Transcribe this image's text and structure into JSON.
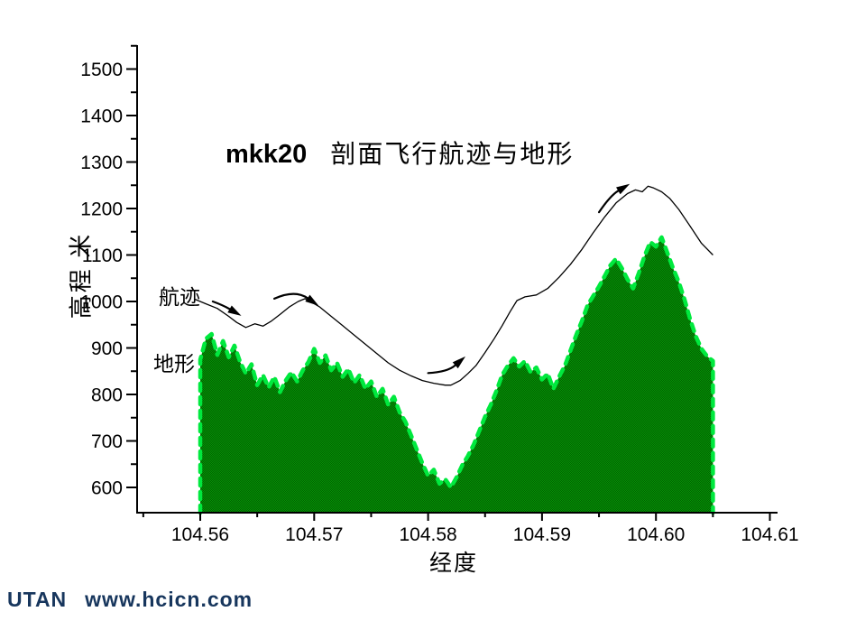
{
  "watermark": {
    "brand": "UTAN",
    "url": "www.hcicn.com",
    "color": "#17365D"
  },
  "chart_data": {
    "type": "area",
    "title": {
      "prefix": "mkk20",
      "text": "剖面飞行航迹与地形"
    },
    "xlabel": "经度",
    "ylabel": "高程 米",
    "xlim": [
      104.5545,
      104.6107
    ],
    "ylim": [
      545,
      1550
    ],
    "x_major_ticks": [
      104.56,
      104.57,
      104.58,
      104.59,
      104.6,
      104.61
    ],
    "x_major_labels": [
      "104.56",
      "104.57",
      "104.58",
      "104.59",
      "104.60",
      "104.61"
    ],
    "x_minor_ticks": [
      104.555,
      104.565,
      104.575,
      104.585,
      104.595,
      104.605
    ],
    "y_major_ticks": [
      600,
      700,
      800,
      900,
      1000,
      1100,
      1200,
      1300,
      1400,
      1500
    ],
    "y_major_labels": [
      "600",
      "700",
      "800",
      "900",
      "1000",
      "1100",
      "1200",
      "1300",
      "1400",
      "1500"
    ],
    "y_minor_ticks": [
      650,
      750,
      850,
      950,
      1050,
      1150,
      1250,
      1350,
      1450,
      1550
    ],
    "grid": false,
    "legend_position": "inline-labels",
    "colors": {
      "axis": "#000000",
      "flight_line": "#000000",
      "terrain_fill": "#059405",
      "terrain_fill_dark": "#026002",
      "terrain_edge": "#00E93E"
    },
    "series": [
      {
        "name": "航迹",
        "type": "line",
        "label_pos": [
          104.5564,
          1023
        ],
        "points": [
          [
            104.5595,
            1005
          ],
          [
            104.5605,
            995
          ],
          [
            104.5615,
            985
          ],
          [
            104.5625,
            968
          ],
          [
            104.5632,
            955
          ],
          [
            104.564,
            944
          ],
          [
            104.5648,
            952
          ],
          [
            104.5655,
            947
          ],
          [
            104.5662,
            957
          ],
          [
            104.567,
            972
          ],
          [
            104.5678,
            988
          ],
          [
            104.5686,
            1000
          ],
          [
            104.5692,
            1006
          ],
          [
            104.5698,
            998
          ],
          [
            104.5705,
            988
          ],
          [
            104.5715,
            968
          ],
          [
            104.5725,
            948
          ],
          [
            104.5735,
            928
          ],
          [
            104.5745,
            908
          ],
          [
            104.5755,
            888
          ],
          [
            104.5765,
            868
          ],
          [
            104.5775,
            852
          ],
          [
            104.5785,
            840
          ],
          [
            104.5795,
            830
          ],
          [
            104.5805,
            824
          ],
          [
            104.5815,
            820
          ],
          [
            104.582,
            820
          ],
          [
            104.5828,
            830
          ],
          [
            104.5835,
            845
          ],
          [
            104.5842,
            862
          ],
          [
            104.585,
            890
          ],
          [
            104.5858,
            920
          ],
          [
            104.5865,
            948
          ],
          [
            104.5872,
            978
          ],
          [
            104.5878,
            1002
          ],
          [
            104.5885,
            1010
          ],
          [
            104.5895,
            1014
          ],
          [
            104.5905,
            1028
          ],
          [
            104.5915,
            1052
          ],
          [
            104.5925,
            1080
          ],
          [
            104.5935,
            1112
          ],
          [
            104.5945,
            1148
          ],
          [
            104.5955,
            1182
          ],
          [
            104.5965,
            1212
          ],
          [
            104.5975,
            1232
          ],
          [
            104.5982,
            1240
          ],
          [
            104.5988,
            1236
          ],
          [
            104.5993,
            1248
          ],
          [
            104.5998,
            1244
          ],
          [
            104.6005,
            1236
          ],
          [
            104.6012,
            1222
          ],
          [
            104.602,
            1198
          ],
          [
            104.603,
            1162
          ],
          [
            104.604,
            1125
          ],
          [
            104.605,
            1100
          ]
        ]
      },
      {
        "name": "地形",
        "type": "area",
        "label_pos": [
          104.556,
          880
        ],
        "baseline": 545,
        "points": [
          [
            104.56,
            875
          ],
          [
            104.5605,
            920
          ],
          [
            104.561,
            930
          ],
          [
            104.5615,
            885
          ],
          [
            104.562,
            915
          ],
          [
            104.5625,
            880
          ],
          [
            104.563,
            905
          ],
          [
            104.5635,
            870
          ],
          [
            104.564,
            845
          ],
          [
            104.5645,
            865
          ],
          [
            104.565,
            820
          ],
          [
            104.5655,
            842
          ],
          [
            104.566,
            815
          ],
          [
            104.5665,
            838
          ],
          [
            104.567,
            805
          ],
          [
            104.5675,
            830
          ],
          [
            104.568,
            848
          ],
          [
            104.5685,
            828
          ],
          [
            104.569,
            852
          ],
          [
            104.5695,
            870
          ],
          [
            104.57,
            898
          ],
          [
            104.5705,
            868
          ],
          [
            104.571,
            884
          ],
          [
            104.5715,
            852
          ],
          [
            104.572,
            868
          ],
          [
            104.5725,
            838
          ],
          [
            104.573,
            855
          ],
          [
            104.5735,
            825
          ],
          [
            104.574,
            842
          ],
          [
            104.5745,
            812
          ],
          [
            104.575,
            828
          ],
          [
            104.5755,
            795
          ],
          [
            104.576,
            812
          ],
          [
            104.5765,
            778
          ],
          [
            104.577,
            795
          ],
          [
            104.5775,
            762
          ],
          [
            104.578,
            742
          ],
          [
            104.5785,
            712
          ],
          [
            104.579,
            682
          ],
          [
            104.5795,
            652
          ],
          [
            104.58,
            625
          ],
          [
            104.5805,
            638
          ],
          [
            104.581,
            608
          ],
          [
            104.5815,
            618
          ],
          [
            104.582,
            600
          ],
          [
            104.5825,
            622
          ],
          [
            104.583,
            648
          ],
          [
            104.5835,
            668
          ],
          [
            104.584,
            692
          ],
          [
            104.5845,
            722
          ],
          [
            104.585,
            752
          ],
          [
            104.5855,
            778
          ],
          [
            104.586,
            808
          ],
          [
            104.5865,
            842
          ],
          [
            104.587,
            862
          ],
          [
            104.5875,
            878
          ],
          [
            104.588,
            860
          ],
          [
            104.5885,
            872
          ],
          [
            104.589,
            848
          ],
          [
            104.5895,
            858
          ],
          [
            104.59,
            832
          ],
          [
            104.5905,
            845
          ],
          [
            104.591,
            812
          ],
          [
            104.5915,
            838
          ],
          [
            104.592,
            862
          ],
          [
            104.5925,
            895
          ],
          [
            104.593,
            928
          ],
          [
            104.5935,
            958
          ],
          [
            104.594,
            992
          ],
          [
            104.5945,
            1012
          ],
          [
            104.595,
            1032
          ],
          [
            104.5955,
            1055
          ],
          [
            104.596,
            1078
          ],
          [
            104.5965,
            1092
          ],
          [
            104.597,
            1072
          ],
          [
            104.5975,
            1048
          ],
          [
            104.598,
            1028
          ],
          [
            104.5985,
            1062
          ],
          [
            104.599,
            1098
          ],
          [
            104.5995,
            1128
          ],
          [
            104.6,
            1118
          ],
          [
            104.6005,
            1138
          ],
          [
            104.601,
            1105
          ],
          [
            104.6015,
            1072
          ],
          [
            104.602,
            1042
          ],
          [
            104.6025,
            1005
          ],
          [
            104.603,
            962
          ],
          [
            104.6035,
            925
          ],
          [
            104.604,
            898
          ],
          [
            104.6045,
            882
          ],
          [
            104.605,
            872
          ]
        ]
      }
    ],
    "arrows": [
      {
        "tail": [
          104.5611,
          1000
        ],
        "ctrl": [
          104.562,
          992
        ],
        "head": [
          104.5634,
          972
        ]
      },
      {
        "tail": [
          104.5665,
          1006
        ],
        "ctrl": [
          104.5683,
          1026
        ],
        "head": [
          104.5702,
          994
        ]
      },
      {
        "tail": [
          104.58,
          846
        ],
        "ctrl": [
          104.5817,
          848
        ],
        "head": [
          104.5831,
          878
        ]
      },
      {
        "tail": [
          104.595,
          1192
        ],
        "ctrl": [
          104.596,
          1228
        ],
        "head": [
          104.5975,
          1250
        ]
      }
    ]
  }
}
